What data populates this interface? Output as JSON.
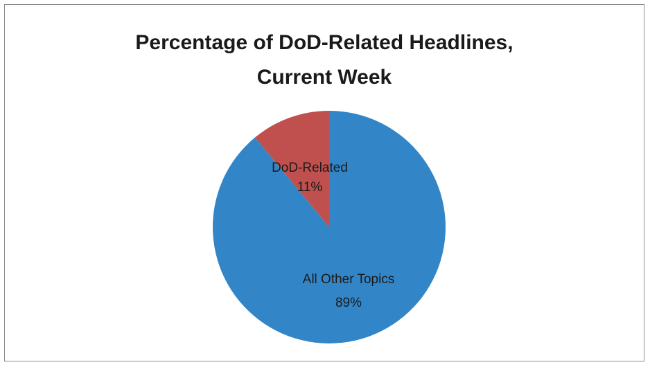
{
  "chart_data": {
    "type": "pie",
    "title_line1": "Percentage of DoD-Related Headlines,",
    "title_line2": "Current Week",
    "slices": [
      {
        "label": "DoD-Related",
        "pct_text": "11%",
        "value": 11,
        "color": "#c0504d"
      },
      {
        "label": "All Other Topics",
        "pct_text": "89%",
        "value": 89,
        "color": "#3286c8"
      }
    ],
    "start_angle_deg": 0,
    "direction": "counterclockwise-from-top-for-first-slice"
  }
}
